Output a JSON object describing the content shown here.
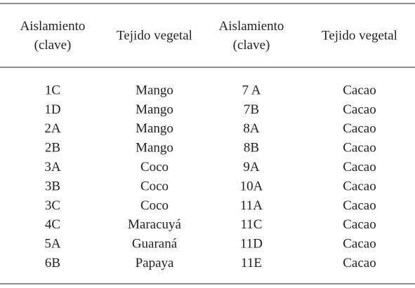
{
  "table": {
    "header": [
      [
        "Aislamiento",
        "(clave)"
      ],
      [
        "Tejido vegetal"
      ],
      [
        "Aislamiento",
        "(clave)"
      ],
      [
        "Tejido vegetal"
      ]
    ],
    "rows": [
      [
        "1C",
        "Mango",
        "7 A",
        "Cacao"
      ],
      [
        "1D",
        "Mango",
        "7B",
        "Cacao"
      ],
      [
        "2A",
        "Mango",
        "8A",
        "Cacao"
      ],
      [
        "2B",
        "Mango",
        "8B",
        "Cacao"
      ],
      [
        "3A",
        "Coco",
        "9A",
        "Cacao"
      ],
      [
        "3B",
        "Coco",
        "10A",
        "Cacao"
      ],
      [
        "3C",
        "Coco",
        "11A",
        "Cacao"
      ],
      [
        "4C",
        "Maracuyá",
        "11C",
        "Cacao"
      ],
      [
        "5A",
        "Guaraná",
        "11D",
        "Cacao"
      ],
      [
        "6B",
        "Papaya",
        "11E",
        "Cacao"
      ]
    ]
  }
}
